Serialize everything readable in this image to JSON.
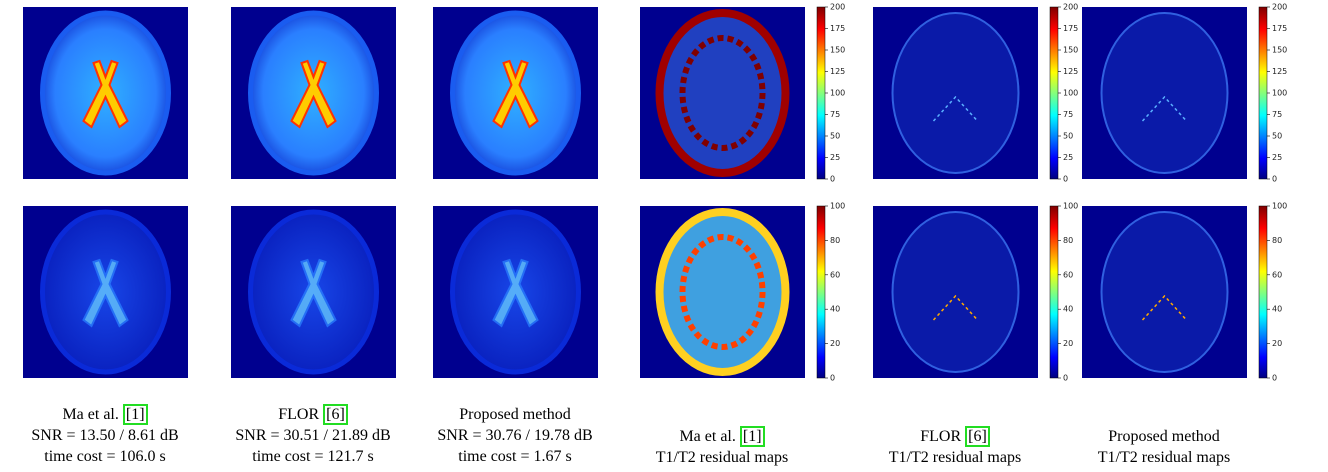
{
  "columns": [
    {
      "name": "Ma et al.",
      "ref": "[1]",
      "snr": "SNR = 13.50 / 8.61 dB",
      "time": "time cost = 106.0 s"
    },
    {
      "name": "FLOR",
      "ref": "[6]",
      "snr": "SNR = 30.51 / 21.89 dB",
      "time": "time cost = 121.7 s"
    },
    {
      "name": "Proposed method",
      "snr": "SNR = 30.76 / 19.78 dB",
      "time": "time cost = 1.67 s"
    },
    {
      "name": "Ma et al.",
      "ref": "[1]",
      "subtitle": "T1/T2 residual maps"
    },
    {
      "name": "FLOR",
      "ref": "[6]",
      "subtitle": "T1/T2 residual maps"
    },
    {
      "name": "Proposed method",
      "subtitle": "T1/T2 residual maps"
    }
  ],
  "colorbars": [
    {
      "lim": [
        0,
        200
      ],
      "ticks": [
        0,
        25,
        50,
        75,
        100,
        125,
        150,
        175,
        200
      ]
    },
    {
      "lim": [
        0,
        100
      ],
      "ticks": [
        0,
        20,
        40,
        60,
        80,
        100
      ]
    }
  ]
}
